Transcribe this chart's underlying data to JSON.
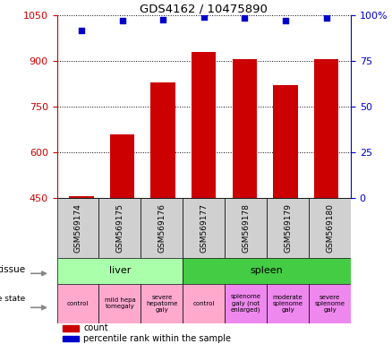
{
  "title": "GDS4162 / 10475890",
  "samples": [
    "GSM569174",
    "GSM569175",
    "GSM569176",
    "GSM569177",
    "GSM569178",
    "GSM569179",
    "GSM569180"
  ],
  "counts": [
    455,
    660,
    830,
    930,
    905,
    820,
    905
  ],
  "percentile_ranks_pct": [
    92,
    97,
    97.5,
    99,
    98.5,
    97,
    98.5
  ],
  "ylim_left": [
    450,
    1050
  ],
  "ylim_right": [
    0,
    100
  ],
  "yticks_left": [
    450,
    600,
    750,
    900,
    1050
  ],
  "yticks_right": [
    0,
    25,
    50,
    75,
    100
  ],
  "ytick_right_labels": [
    "0",
    "25",
    "50",
    "75",
    "100%"
  ],
  "bar_color": "#cc0000",
  "dot_color": "#0000cc",
  "tissue_groups": [
    {
      "label": "liver",
      "start": 0,
      "end": 3,
      "color": "#aaffaa"
    },
    {
      "label": "spleen",
      "start": 3,
      "end": 7,
      "color": "#44cc44"
    }
  ],
  "disease_states": [
    {
      "label": "control",
      "start": 0,
      "end": 1,
      "color": "#ffaacc"
    },
    {
      "label": "mild hepa\ntomegaly",
      "start": 1,
      "end": 2,
      "color": "#ffaacc"
    },
    {
      "label": "severe\nhepatome\ngaly",
      "start": 2,
      "end": 3,
      "color": "#ffaacc"
    },
    {
      "label": "control",
      "start": 3,
      "end": 4,
      "color": "#ffaacc"
    },
    {
      "label": "splenome\ngaly (not\nenlarged)",
      "start": 4,
      "end": 5,
      "color": "#ee88ee"
    },
    {
      "label": "moderate\nsplenome\ngaly",
      "start": 5,
      "end": 6,
      "color": "#ee88ee"
    },
    {
      "label": "severe\nsplenome\ngaly",
      "start": 6,
      "end": 7,
      "color": "#ee88ee"
    }
  ],
  "left_axis_color": "#cc0000",
  "right_axis_color": "#0000cc",
  "sample_bg_color": "#d0d0d0",
  "bar_width": 0.6
}
